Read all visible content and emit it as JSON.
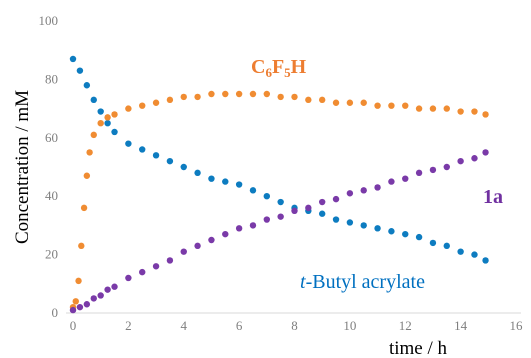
{
  "chart_data": {
    "type": "scatter",
    "xlabel": "time / h",
    "ylabel": "Concentration / mM",
    "xlim": [
      0,
      16
    ],
    "ylim": [
      0,
      100
    ],
    "x_ticks": [
      "0",
      "2",
      "4",
      "6",
      "8",
      "10",
      "12",
      "14",
      "16"
    ],
    "y_ticks": [
      "0",
      "20",
      "40",
      "60",
      "80",
      "100"
    ],
    "grid": false,
    "legend": "none",
    "annotations": [
      {
        "text": "C6F5H",
        "main": "C",
        "sub1": "6",
        "mid": "F",
        "sub2": "5",
        "tail": "H",
        "color": "#ed7d31"
      },
      {
        "text": "1a",
        "color": "#7030a0"
      },
      {
        "text": "t-Butyl acrylate",
        "italic": "t",
        "rest": "-Butyl acrylate",
        "color": "#0070c0"
      }
    ],
    "series": [
      {
        "name": "t-Butyl acrylate",
        "color": "#0d7cc0",
        "x": [
          0.0,
          0.25,
          0.5,
          0.75,
          1.0,
          1.25,
          1.5,
          2.0,
          2.5,
          3.0,
          3.5,
          4.0,
          4.5,
          5.0,
          5.5,
          6.0,
          6.5,
          7.0,
          7.5,
          8.0,
          8.5,
          9.0,
          9.5,
          10.0,
          10.5,
          11.0,
          11.5,
          12.0,
          12.5,
          13.0,
          13.5,
          14.0,
          14.5,
          14.9
        ],
        "y": [
          87,
          83,
          78,
          73,
          69,
          65,
          62,
          58,
          56,
          54,
          52,
          50,
          48,
          46,
          45,
          44,
          42,
          40,
          38,
          36,
          35,
          34,
          32,
          31,
          30,
          29,
          28,
          27,
          26,
          24,
          23,
          21,
          20,
          18
        ]
      },
      {
        "name": "C6F5H",
        "color": "#f08c32",
        "x": [
          0.0,
          0.1,
          0.2,
          0.3,
          0.4,
          0.5,
          0.6,
          0.75,
          1.0,
          1.25,
          1.5,
          2.0,
          2.5,
          3.0,
          3.5,
          4.0,
          4.5,
          5.0,
          5.5,
          6.0,
          6.5,
          7.0,
          7.5,
          8.0,
          8.5,
          9.0,
          9.5,
          10.0,
          10.5,
          11.0,
          11.5,
          12.0,
          12.5,
          13.0,
          13.5,
          14.0,
          14.5,
          14.9
        ],
        "y": [
          2,
          4,
          11,
          23,
          36,
          47,
          55,
          61,
          65,
          67,
          68,
          70,
          71,
          72,
          73,
          74,
          74,
          75,
          75,
          75,
          75,
          75,
          74,
          74,
          73,
          73,
          72,
          72,
          72,
          71,
          71,
          71,
          70,
          70,
          70,
          69,
          69,
          68
        ]
      },
      {
        "name": "1a",
        "color": "#7a3aa8",
        "x": [
          0.0,
          0.25,
          0.5,
          0.75,
          1.0,
          1.25,
          1.5,
          2.0,
          2.5,
          3.0,
          3.5,
          4.0,
          4.5,
          5.0,
          5.5,
          6.0,
          6.5,
          7.0,
          7.5,
          8.0,
          8.5,
          9.0,
          9.5,
          10.0,
          10.5,
          11.0,
          11.5,
          12.0,
          12.5,
          13.0,
          13.5,
          14.0,
          14.5,
          14.9
        ],
        "y": [
          1,
          2,
          3,
          5,
          6,
          8,
          9,
          12,
          14,
          16,
          18,
          21,
          23,
          25,
          27,
          29,
          30,
          32,
          33,
          35,
          36,
          38,
          39,
          41,
          42,
          43,
          45,
          46,
          48,
          49,
          50,
          52,
          53,
          55
        ]
      }
    ]
  }
}
